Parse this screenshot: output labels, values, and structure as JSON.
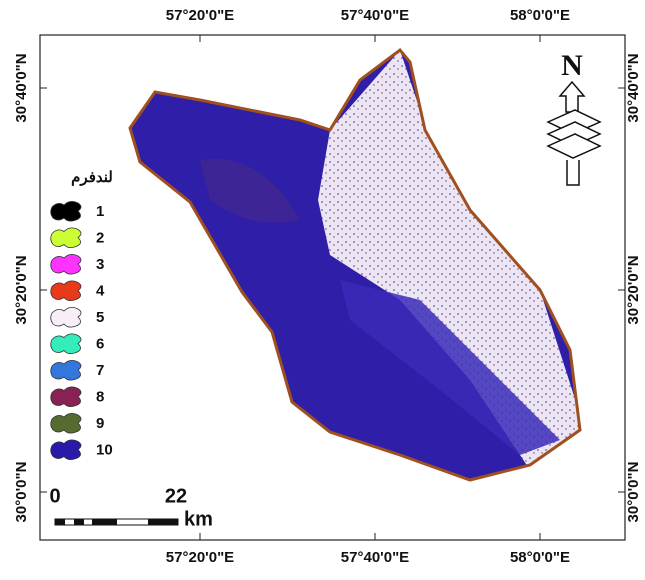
{
  "map": {
    "x_labels_top": [
      "57°20'0\"E",
      "57°40'0\"E",
      "58°0'0\"E"
    ],
    "x_labels_bottom": [
      "57°20'0\"E",
      "57°40'0\"E",
      "58°0'0\"E"
    ],
    "y_labels_left": [
      "30°40'0\"N",
      "30°20'0\"N",
      "30°0'0\"N"
    ],
    "y_labels_right": [
      "30°40'0\"N",
      "30°20'0\"N",
      "30°0'0\"N"
    ],
    "legend": {
      "title": "لندفرم",
      "items": [
        {
          "label": "1",
          "color": "#000000"
        },
        {
          "label": "2",
          "color": "#ccff33"
        },
        {
          "label": "3",
          "color": "#ff33ff"
        },
        {
          "label": "4",
          "color": "#e83a1a"
        },
        {
          "label": "5",
          "color": "#f8eef8"
        },
        {
          "label": "6",
          "color": "#33eebb"
        },
        {
          "label": "7",
          "color": "#3377dd"
        },
        {
          "label": "8",
          "color": "#882255"
        },
        {
          "label": "9",
          "color": "#556b2f"
        },
        {
          "label": "10",
          "color": "#2a1aaa"
        }
      ]
    },
    "scale_bar": {
      "start": "0",
      "end": "22",
      "unit": "km"
    },
    "north": "N"
  }
}
